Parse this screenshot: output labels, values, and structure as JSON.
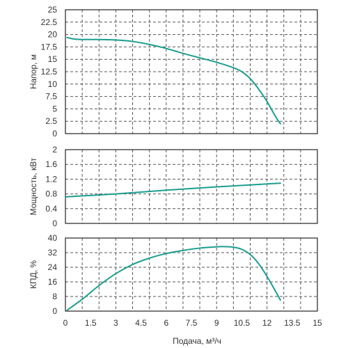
{
  "colors": {
    "curve": "#1a9e8f",
    "grid": "#555555",
    "frame": "#222222",
    "text": "#333333"
  },
  "chart_data": [
    {
      "type": "line",
      "ylabel": "Напор, м",
      "xlim": [
        0,
        15
      ],
      "ylim": [
        0,
        25
      ],
      "yticks": [
        "0",
        "2.5",
        "5",
        "7.5",
        "10",
        "12.5",
        "15",
        "17.5",
        "20",
        "22.5",
        "25"
      ],
      "grid": true,
      "series": [
        {
          "x": [
            0.1,
            0.5,
            1,
            2,
            3,
            4,
            5,
            6,
            7,
            8,
            9,
            10,
            10.5,
            11,
            11.5,
            12,
            12.5,
            12.8
          ],
          "y": [
            19.4,
            19.1,
            19,
            19,
            18.9,
            18.6,
            18,
            17.2,
            16.2,
            15.3,
            14.4,
            13.3,
            12.5,
            11.1,
            9.0,
            6.5,
            3.5,
            2
          ]
        }
      ]
    },
    {
      "type": "line",
      "ylabel": "Мощность, кВт",
      "xlim": [
        0,
        15
      ],
      "ylim": [
        0,
        2
      ],
      "yticks": [
        "0",
        "0.4",
        "0.8",
        "1.2",
        "1.6",
        "2"
      ],
      "grid": true,
      "series": [
        {
          "x": [
            0,
            3,
            6,
            9,
            12,
            12.8
          ],
          "y": [
            0.72,
            0.8,
            0.9,
            0.99,
            1.07,
            1.09
          ]
        }
      ]
    },
    {
      "type": "line",
      "ylabel": "КПД, %",
      "xlabel": "Подача, м³/ч",
      "xlim": [
        0,
        15
      ],
      "ylim": [
        0,
        40
      ],
      "xticks": [
        "0",
        "1.5",
        "3",
        "4.5",
        "6",
        "7.5",
        "9",
        "10.5",
        "12",
        "13.5",
        "15"
      ],
      "yticks": [
        "0",
        "8",
        "16",
        "24",
        "32",
        "40"
      ],
      "grid": true,
      "series": [
        {
          "x": [
            0.1,
            1,
            2,
            3,
            4,
            5,
            6,
            7,
            8,
            9,
            9.5,
            10,
            10.5,
            11,
            11.5,
            12,
            12.5,
            12.8
          ],
          "y": [
            0.5,
            6.5,
            14,
            20.5,
            25.5,
            29,
            31.5,
            33.2,
            34.5,
            35.2,
            35.3,
            35,
            33.8,
            31,
            26,
            19,
            11,
            6
          ]
        }
      ]
    }
  ]
}
